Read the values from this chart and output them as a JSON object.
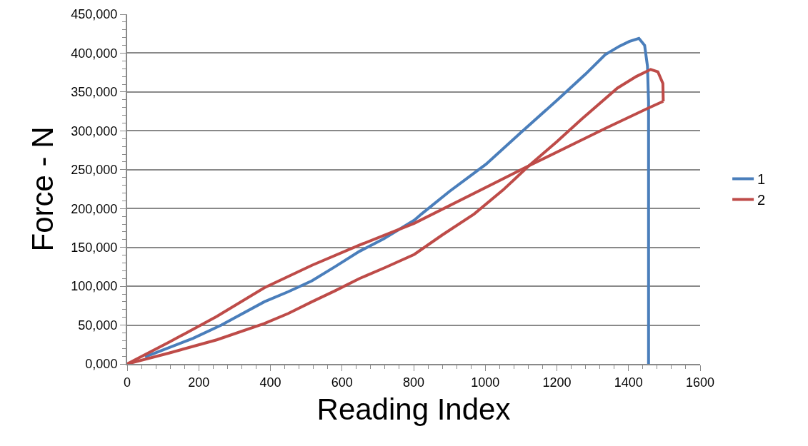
{
  "chart_data": {
    "type": "line",
    "xlabel": "Reading Index",
    "ylabel": "Force - N",
    "series": [
      {
        "name": "1",
        "color": "#4a7ebb",
        "x": [
          50,
          184,
          263,
          383,
          450,
          516,
          580,
          649,
          716,
          802,
          822,
          900,
          1002,
          1100,
          1202,
          1280,
          1335,
          1375,
          1402,
          1429,
          1445,
          1453,
          1456,
          1456
        ],
        "values": [
          9000,
          33000,
          50000,
          80000,
          93000,
          107000,
          125000,
          145000,
          161000,
          185000,
          193000,
          222000,
          257000,
          298000,
          340000,
          373000,
          398000,
          409000,
          415000,
          419000,
          410000,
          383000,
          337000,
          0
        ]
      },
      {
        "name": "2",
        "color": "#be4b48",
        "x": [
          0,
          117,
          250,
          383,
          450,
          516,
          580,
          649,
          720,
          802,
          880,
          969,
          1050,
          1122,
          1200,
          1269,
          1369,
          1422,
          1462,
          1482,
          1496,
          1497
        ],
        "values": [
          0,
          14000,
          31000,
          52000,
          65000,
          80000,
          94000,
          110000,
          124000,
          141000,
          166000,
          193000,
          224000,
          255000,
          286000,
          315000,
          355000,
          370000,
          379000,
          376000,
          361000,
          338000
        ]
      },
      {
        "color": "#be4b48",
        "x": [
          0,
          117,
          250,
          383,
          516,
          649,
          802,
          1122,
          1335,
          1454,
          1497
        ],
        "values": [
          0,
          28000,
          61000,
          98000,
          127000,
          153000,
          181000,
          255000,
          303000,
          329000,
          338000
        ]
      }
    ],
    "xlim": [
      0,
      1600
    ],
    "xticks": [
      0,
      200,
      400,
      600,
      800,
      1000,
      1200,
      1400,
      1600
    ],
    "ylim": [
      0,
      450000
    ],
    "yticks": [
      {
        "value": 0,
        "label": "0,000"
      },
      {
        "value": 50000,
        "label": "50,000"
      },
      {
        "value": 100000,
        "label": "100,000"
      },
      {
        "value": 150000,
        "label": "150,000"
      },
      {
        "value": 200000,
        "label": "200,000"
      },
      {
        "value": 250000,
        "label": "250,000"
      },
      {
        "value": 300000,
        "label": "300,000"
      },
      {
        "value": 350000,
        "label": "350,000"
      },
      {
        "value": 400000,
        "label": "400,000"
      },
      {
        "value": 450000,
        "label": "450,000"
      }
    ],
    "grid": "y",
    "legend": "right",
    "marker": "none",
    "line_style": "solid"
  }
}
